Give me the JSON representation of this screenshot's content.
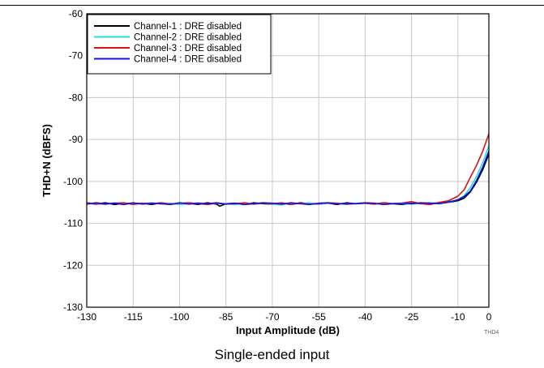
{
  "chart_data": {
    "type": "line",
    "title": "",
    "xlabel": "Input Amplitude (dB)",
    "ylabel": "THD+N (dBFS)",
    "xlim": [
      -130,
      0
    ],
    "ylim": [
      -130,
      -60
    ],
    "xticks": [
      -130,
      -115,
      -100,
      -85,
      -70,
      -55,
      -40,
      -25,
      -10,
      0
    ],
    "yticks": [
      -60,
      -70,
      -80,
      -90,
      -100,
      -110,
      -120,
      -130
    ],
    "grid": true,
    "legend_position": "top-left",
    "series": [
      {
        "name": "Channel-1 : DRE disabled",
        "color": "#000000",
        "x": [
          -130,
          -127,
          -124,
          -121,
          -118,
          -115,
          -112,
          -109,
          -106,
          -103,
          -100,
          -97,
          -94,
          -91,
          -88,
          -87,
          -85,
          -82,
          -79,
          -76,
          -73,
          -70,
          -67,
          -64,
          -61,
          -58,
          -55,
          -52,
          -49,
          -46,
          -43,
          -40,
          -37,
          -34,
          -31,
          -28,
          -25,
          -22,
          -19,
          -16,
          -13,
          -10,
          -8,
          -6,
          -4,
          -2,
          0
        ],
        "y": [
          -105.2,
          -105.4,
          -105.1,
          -105.5,
          -105.2,
          -105.3,
          -105.2,
          -105.5,
          -105.1,
          -105.4,
          -105.3,
          -105.2,
          -105.5,
          -105.1,
          -105.4,
          -105.9,
          -105.3,
          -105.2,
          -105.5,
          -105.1,
          -105.3,
          -105.4,
          -105.2,
          -105.5,
          -105.1,
          -105.3,
          -105.4,
          -105.2,
          -105.5,
          -105.1,
          -105.3,
          -105.2,
          -105.4,
          -105.1,
          -105.3,
          -105.5,
          -105.2,
          -105.3,
          -105.2,
          -105.1,
          -105.0,
          -104.6,
          -104.0,
          -102.5,
          -100.2,
          -97.2,
          -93.5
        ]
      },
      {
        "name": "Channel-2 : DRE disabled",
        "color": "#22e0e0",
        "x": [
          -130,
          -127,
          -124,
          -121,
          -118,
          -115,
          -112,
          -109,
          -106,
          -103,
          -100,
          -97,
          -94,
          -91,
          -88,
          -85,
          -82,
          -79,
          -76,
          -73,
          -70,
          -67,
          -64,
          -61,
          -58,
          -55,
          -52,
          -49,
          -46,
          -43,
          -40,
          -37,
          -34,
          -31,
          -28,
          -25,
          -22,
          -19,
          -16,
          -13,
          -10,
          -8,
          -6,
          -4,
          -2,
          0
        ],
        "y": [
          -105.3,
          -105.2,
          -105.5,
          -105.1,
          -105.4,
          -105.2,
          -105.3,
          -105.1,
          -105.4,
          -105.2,
          -105.5,
          -105.3,
          -105.1,
          -105.4,
          -105.2,
          -105.3,
          -105.5,
          -105.2,
          -105.3,
          -105.1,
          -105.4,
          -105.6,
          -105.2,
          -105.3,
          -105.1,
          -105.4,
          -105.2,
          -105.3,
          -105.5,
          -105.2,
          -105.1,
          -105.3,
          -105.4,
          -105.2,
          -105.3,
          -105.4,
          -105.2,
          -105.1,
          -105.2,
          -105.0,
          -104.3,
          -103.4,
          -101.5,
          -98.8,
          -95.5,
          -91.5
        ]
      },
      {
        "name": "Channel-3 : DRE disabled",
        "color": "#dd1111",
        "x": [
          -130,
          -127,
          -124,
          -121,
          -118,
          -115,
          -112,
          -109,
          -106,
          -103,
          -100,
          -97,
          -94,
          -91,
          -88,
          -85,
          -82,
          -79,
          -76,
          -73,
          -70,
          -67,
          -64,
          -61,
          -58,
          -55,
          -52,
          -49,
          -46,
          -43,
          -40,
          -37,
          -34,
          -31,
          -28,
          -25,
          -22,
          -19,
          -16,
          -13,
          -10,
          -8,
          -6,
          -4,
          -2,
          0
        ],
        "y": [
          -105.1,
          -105.3,
          -105.4,
          -105.2,
          -105.1,
          -105.5,
          -105.2,
          -105.3,
          -105.1,
          -105.4,
          -105.2,
          -105.1,
          -105.3,
          -105.5,
          -105.2,
          -105.4,
          -105.3,
          -105.1,
          -105.4,
          -105.2,
          -105.3,
          -105.1,
          -105.5,
          -105.2,
          -105.4,
          -105.3,
          -105.1,
          -105.2,
          -105.4,
          -105.3,
          -105.2,
          -105.4,
          -105.1,
          -105.3,
          -105.2,
          -104.8,
          -105.3,
          -105.5,
          -105.0,
          -104.6,
          -103.5,
          -102.0,
          -99.0,
          -96.2,
          -92.8,
          -88.6
        ]
      },
      {
        "name": "Channel-4 : DRE disabled",
        "color": "#1111dd",
        "x": [
          -130,
          -127,
          -124,
          -121,
          -118,
          -115,
          -112,
          -109,
          -106,
          -103,
          -100,
          -97,
          -94,
          -91,
          -88,
          -85,
          -82,
          -79,
          -76,
          -73,
          -70,
          -67,
          -64,
          -61,
          -58,
          -55,
          -52,
          -49,
          -46,
          -43,
          -40,
          -37,
          -34,
          -31,
          -28,
          -25,
          -22,
          -19,
          -16,
          -13,
          -10,
          -8,
          -6,
          -4,
          -2,
          0
        ],
        "y": [
          -105.4,
          -105.1,
          -105.3,
          -105.2,
          -105.5,
          -105.1,
          -105.4,
          -105.2,
          -105.3,
          -105.5,
          -105.1,
          -105.4,
          -105.2,
          -105.3,
          -105.1,
          -105.4,
          -105.2,
          -105.5,
          -105.3,
          -105.1,
          -105.2,
          -105.4,
          -105.1,
          -105.3,
          -105.5,
          -105.2,
          -105.1,
          -105.4,
          -105.2,
          -105.3,
          -105.1,
          -105.2,
          -105.5,
          -105.3,
          -105.2,
          -105.3,
          -105.1,
          -105.2,
          -105.3,
          -104.9,
          -104.4,
          -103.6,
          -102.3,
          -99.8,
          -96.6,
          -92.8
        ]
      }
    ]
  },
  "figure_code": "THD4",
  "caption": "Single-ended input"
}
